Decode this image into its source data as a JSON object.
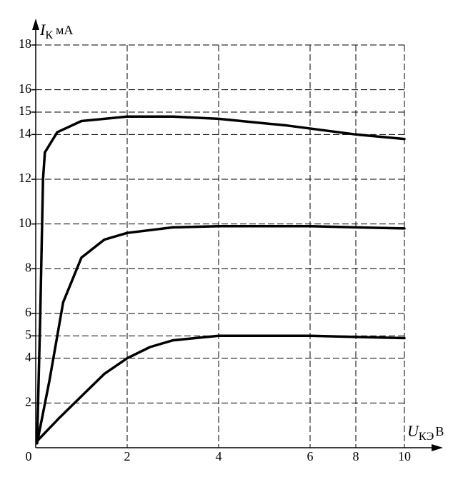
{
  "chart_data": {
    "type": "line",
    "y_label": {
      "symbol": "I",
      "subscript": "К",
      "unit": "мА"
    },
    "x_label": {
      "symbol": "U",
      "subscript": "КЭ",
      "unit": "В"
    },
    "xlim": [
      0,
      10
    ],
    "xticks": [
      0,
      2,
      4,
      6,
      8,
      10
    ],
    "ylim": [
      0,
      18
    ],
    "yticks": [
      2,
      4,
      5,
      6,
      8,
      10,
      12,
      14,
      15,
      16,
      18
    ],
    "grid": true,
    "series": [
      {
        "color": "#000000",
        "x": [
          0.03,
          0.1,
          0.16,
          0.2,
          0.47,
          1,
          2,
          3,
          4,
          5.5,
          8,
          10
        ],
        "values": [
          0.2,
          6,
          12,
          13.2,
          14.1,
          14.6,
          14.8,
          14.8,
          14.7,
          14.4,
          14.0,
          13.8
        ]
      },
      {
        "color": "#000000",
        "x": [
          0.03,
          0.3,
          0.6,
          1,
          1.5,
          2,
          3,
          4,
          6,
          8,
          10
        ],
        "values": [
          0.2,
          3,
          6.5,
          8.5,
          9.3,
          9.6,
          9.85,
          9.9,
          9.9,
          9.85,
          9.8
        ]
      },
      {
        "color": "#000000",
        "x": [
          0.03,
          0.5,
          1,
          1.5,
          2,
          2.5,
          3,
          4,
          6,
          8,
          10
        ],
        "values": [
          0.3,
          1.3,
          2.3,
          3.3,
          4,
          4.5,
          4.8,
          5,
          5,
          4.95,
          4.9
        ]
      }
    ]
  }
}
